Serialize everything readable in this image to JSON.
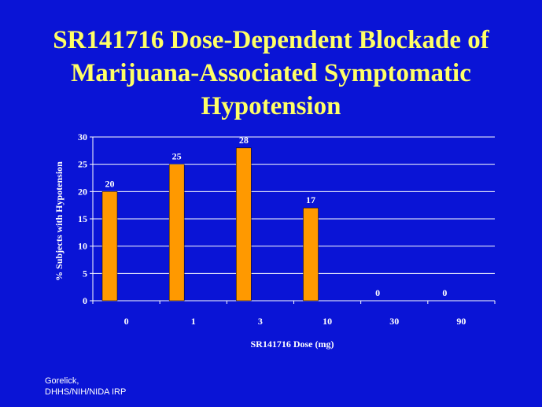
{
  "slide": {
    "title_lines": [
      "SR141716 Dose-Dependent Blockade of",
      "Marijuana-Associated Symptomatic",
      "Hypotension"
    ],
    "credit_lines": [
      "Gorelick,",
      "DHHS/NIH/NIDA IRP"
    ]
  },
  "colors": {
    "background": "#0a14d6",
    "title": "#ffff66",
    "bar_fill": "#ff9900",
    "bar_stroke": "#000000",
    "gridline": "#ffffff",
    "text": "#ffffff"
  },
  "chart_data": {
    "type": "bar",
    "title": "",
    "categories": [
      "0",
      "1",
      "3",
      "10",
      "30",
      "90"
    ],
    "values": [
      20,
      25,
      28,
      17,
      0,
      0
    ],
    "data_labels": [
      "20",
      "25",
      "28",
      "17",
      "0",
      "0"
    ],
    "xlabel": "SR141716 Dose (mg)",
    "ylabel": "% Subjects with Hypotension",
    "ylim": [
      0,
      30
    ],
    "yticks": [
      "0",
      "5",
      "10",
      "15",
      "20",
      "25",
      "30"
    ],
    "grid": true,
    "legend": "none"
  }
}
